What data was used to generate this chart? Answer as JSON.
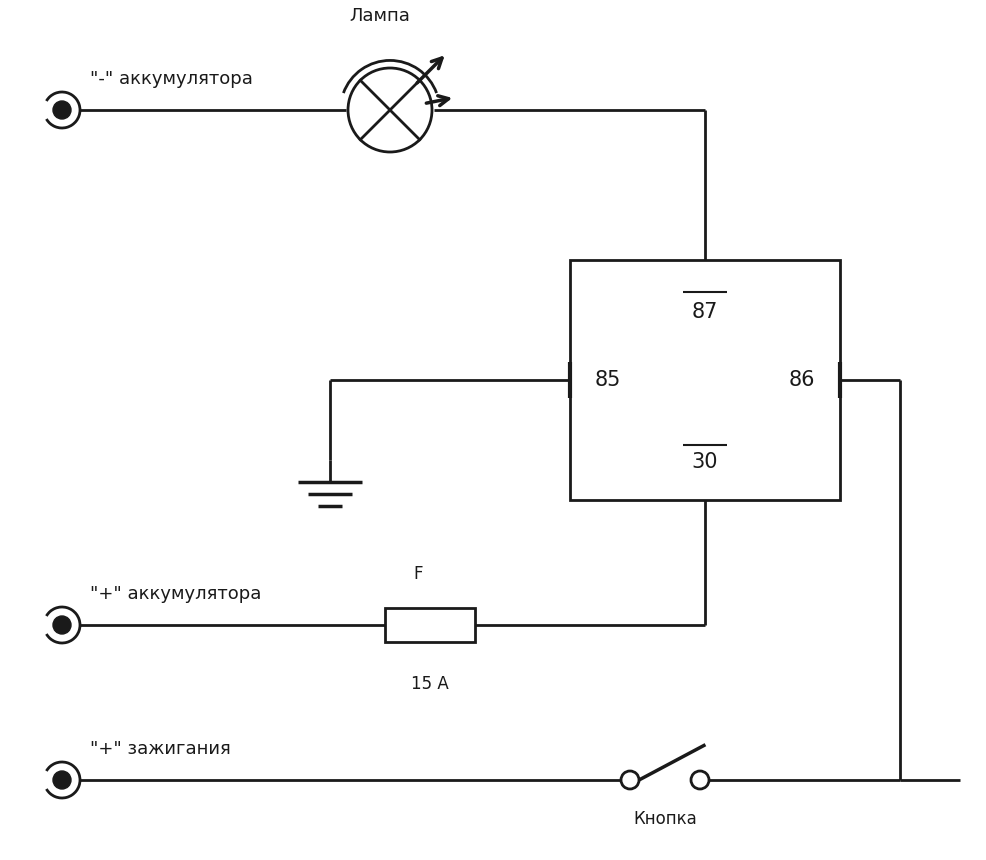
{
  "bg_color": "#ffffff",
  "line_color": "#1a1a1a",
  "line_width": 2.0,
  "font_size_label": 13,
  "font_size_pin": 15,
  "font_size_fuse": 12,
  "font_size_lamp": 13,
  "neg_battery_label": "\"-\" аккумулятора",
  "pos_battery_label": "\"+\" аккумулятора",
  "ignition_label": "\"+\" зажигания",
  "lamp_label": "Лампа",
  "fuse_label": "F",
  "fuse_sublabel": "15 А",
  "button_label": "Кнопка",
  "pin87": "87",
  "pin85": "85",
  "pin86": "86",
  "pin30": "30"
}
